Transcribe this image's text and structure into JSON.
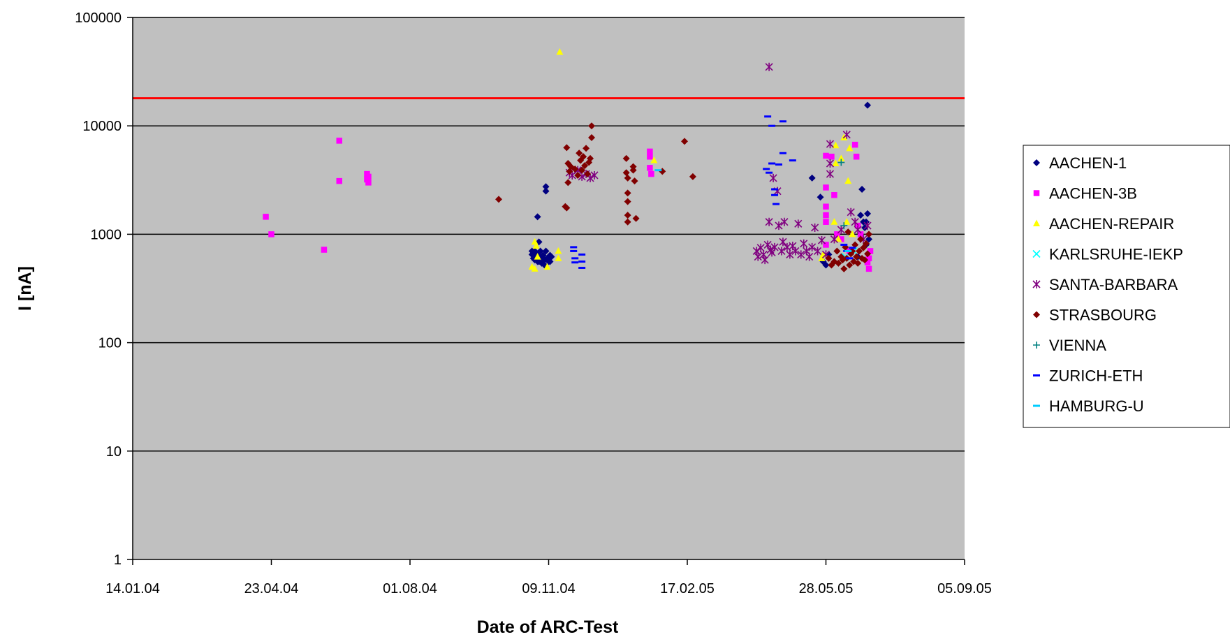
{
  "chart_data": {
    "type": "scatter",
    "title": "",
    "xlabel": "Date of ARC-Test",
    "ylabel": "I [nA]",
    "x_scale": "date",
    "y_scale": "log",
    "xlim": [
      "2004-01-14",
      "2005-09-05"
    ],
    "ylim": [
      1,
      100000
    ],
    "x_tick_labels": [
      "14.01.04",
      "23.04.04",
      "01.08.04",
      "09.11.04",
      "17.02.05",
      "28.05.05",
      "05.09.05"
    ],
    "y_tick_labels": [
      "1",
      "10",
      "100",
      "1000",
      "10000",
      "100000"
    ],
    "y_ticks": [
      1,
      10,
      100,
      1000,
      10000,
      100000
    ],
    "grid": "horizontal",
    "plot_background": "#c0c0c0",
    "threshold_line": {
      "y": 18000,
      "color": "#ff0000"
    },
    "legend_position": "right",
    "series": [
      {
        "name": "AACHEN-1",
        "marker": "diamond",
        "color": "#000080",
        "points": [
          [
            "2004-11-01",
            1450
          ],
          [
            "2004-11-07",
            2500
          ],
          [
            "2004-11-07",
            2750
          ],
          [
            "2004-10-28",
            700
          ],
          [
            "2004-10-28",
            650
          ],
          [
            "2004-10-29",
            600
          ],
          [
            "2004-10-30",
            580
          ],
          [
            "2004-10-30",
            700
          ],
          [
            "2004-10-31",
            620
          ],
          [
            "2004-11-01",
            650
          ],
          [
            "2004-11-01",
            560
          ],
          [
            "2004-11-02",
            850
          ],
          [
            "2004-11-02",
            560
          ],
          [
            "2004-11-03",
            700
          ],
          [
            "2004-11-04",
            620
          ],
          [
            "2004-11-04",
            540
          ],
          [
            "2004-11-05",
            600
          ],
          [
            "2004-11-05",
            640
          ],
          [
            "2004-11-06",
            580
          ],
          [
            "2004-11-06",
            520
          ],
          [
            "2004-11-07",
            700
          ],
          [
            "2004-11-08",
            600
          ],
          [
            "2004-11-09",
            560
          ],
          [
            "2004-11-10",
            640
          ],
          [
            "2004-11-10",
            560
          ],
          [
            "2004-11-11",
            620
          ],
          [
            "2005-05-18",
            3300
          ],
          [
            "2005-05-24",
            2200
          ],
          [
            "2005-05-26",
            560
          ],
          [
            "2005-05-28",
            520
          ],
          [
            "2005-05-30",
            650
          ],
          [
            "2005-06-10",
            600
          ],
          [
            "2005-06-15",
            680
          ],
          [
            "2005-06-20",
            620
          ],
          [
            "2005-06-22",
            1500
          ],
          [
            "2005-06-23",
            2600
          ],
          [
            "2005-06-24",
            1300
          ],
          [
            "2005-06-25",
            1150
          ],
          [
            "2005-06-26",
            1300
          ],
          [
            "2005-06-26",
            800
          ],
          [
            "2005-06-27",
            1550
          ],
          [
            "2005-06-27",
            15500
          ],
          [
            "2005-06-28",
            900
          ]
        ]
      },
      {
        "name": "AACHEN-3B",
        "marker": "square",
        "color": "#ff00ff",
        "points": [
          [
            "2004-04-19",
            1450
          ],
          [
            "2004-04-23",
            1000
          ],
          [
            "2004-05-31",
            720
          ],
          [
            "2004-06-11",
            7300
          ],
          [
            "2004-06-11",
            3100
          ],
          [
            "2004-07-01",
            3600
          ],
          [
            "2004-07-01",
            3200
          ],
          [
            "2004-07-02",
            3000
          ],
          [
            "2004-07-02",
            3400
          ],
          [
            "2005-01-21",
            5800
          ],
          [
            "2005-01-21",
            5200
          ],
          [
            "2005-01-22",
            3600
          ],
          [
            "2005-01-21",
            4100
          ],
          [
            "2005-05-28",
            5300
          ],
          [
            "2005-05-28",
            2700
          ],
          [
            "2005-05-28",
            1800
          ],
          [
            "2005-05-28",
            1500
          ],
          [
            "2005-05-28",
            1300
          ],
          [
            "2005-05-28",
            800
          ],
          [
            "2005-06-01",
            5200
          ],
          [
            "2005-06-03",
            2300
          ],
          [
            "2005-06-05",
            1000
          ],
          [
            "2005-06-08",
            900
          ],
          [
            "2005-06-14",
            700
          ],
          [
            "2005-06-18",
            6700
          ],
          [
            "2005-06-19",
            5200
          ],
          [
            "2005-06-20",
            1200
          ],
          [
            "2005-06-22",
            1000
          ],
          [
            "2005-06-27",
            550
          ],
          [
            "2005-06-28",
            480
          ],
          [
            "2005-06-28",
            600
          ],
          [
            "2005-06-29",
            700
          ]
        ]
      },
      {
        "name": "AACHEN-REPAIR",
        "marker": "triangle",
        "color": "#ffff00",
        "points": [
          [
            "2004-11-17",
            48000
          ],
          [
            "2004-10-28",
            500
          ],
          [
            "2004-10-30",
            480
          ],
          [
            "2004-10-30",
            850
          ],
          [
            "2004-10-31",
            780
          ],
          [
            "2004-11-01",
            620
          ],
          [
            "2004-11-08",
            500
          ],
          [
            "2004-11-16",
            700
          ],
          [
            "2004-11-16",
            600
          ],
          [
            "2005-01-24",
            4800
          ],
          [
            "2005-05-25",
            600
          ],
          [
            "2005-05-26",
            650
          ],
          [
            "2005-06-04",
            6600
          ],
          [
            "2005-06-04",
            4500
          ],
          [
            "2005-06-03",
            1300
          ],
          [
            "2005-06-08",
            5000
          ],
          [
            "2005-06-10",
            7800
          ],
          [
            "2005-06-13",
            3100
          ],
          [
            "2005-06-14",
            6200
          ],
          [
            "2005-06-12",
            1300
          ],
          [
            "2005-06-06",
            900
          ],
          [
            "2005-06-16",
            1000
          ]
        ]
      },
      {
        "name": "KARLSRUHE-IEKP",
        "marker": "x",
        "color": "#00ffff",
        "points": [
          [
            "2005-06-11",
            620
          ],
          [
            "2005-06-17",
            700
          ]
        ]
      },
      {
        "name": "SANTA-BARBARA",
        "marker": "star",
        "color": "#800080",
        "points": [
          [
            "2005-04-17",
            35000
          ],
          [
            "2004-11-24",
            3700
          ],
          [
            "2004-11-26",
            3500
          ],
          [
            "2004-11-30",
            3900
          ],
          [
            "2004-12-03",
            3400
          ],
          [
            "2004-12-06",
            3600
          ],
          [
            "2004-12-09",
            3300
          ],
          [
            "2004-12-12",
            3500
          ],
          [
            "2005-04-08",
            700
          ],
          [
            "2005-04-09",
            620
          ],
          [
            "2005-04-11",
            750
          ],
          [
            "2005-04-13",
            650
          ],
          [
            "2005-04-14",
            580
          ],
          [
            "2005-04-16",
            800
          ],
          [
            "2005-04-17",
            1300
          ],
          [
            "2005-04-18",
            720
          ],
          [
            "2005-04-19",
            680
          ],
          [
            "2005-04-20",
            3300
          ],
          [
            "2005-04-21",
            760
          ],
          [
            "2005-04-23",
            2500
          ],
          [
            "2005-04-24",
            1200
          ],
          [
            "2005-04-26",
            700
          ],
          [
            "2005-04-27",
            850
          ],
          [
            "2005-04-28",
            1300
          ],
          [
            "2005-04-30",
            760
          ],
          [
            "2005-05-02",
            650
          ],
          [
            "2005-05-04",
            780
          ],
          [
            "2005-05-06",
            700
          ],
          [
            "2005-05-08",
            1250
          ],
          [
            "2005-05-10",
            650
          ],
          [
            "2005-05-12",
            820
          ],
          [
            "2005-05-14",
            700
          ],
          [
            "2005-05-16",
            620
          ],
          [
            "2005-05-18",
            760
          ],
          [
            "2005-05-20",
            1150
          ],
          [
            "2005-05-22",
            700
          ],
          [
            "2005-05-25",
            880
          ],
          [
            "2005-05-28",
            650
          ],
          [
            "2005-05-31",
            6800
          ],
          [
            "2005-05-31",
            4500
          ],
          [
            "2005-05-31",
            3600
          ],
          [
            "2005-06-03",
            900
          ],
          [
            "2005-06-08",
            1100
          ],
          [
            "2005-06-12",
            8300
          ],
          [
            "2005-06-15",
            1600
          ],
          [
            "2005-06-18",
            1300
          ],
          [
            "2005-06-20",
            1100
          ],
          [
            "2005-06-24",
            900
          ],
          [
            "2005-06-27",
            1200
          ]
        ]
      },
      {
        "name": "STRASBOURG",
        "marker": "diamond",
        "color": "#800000",
        "points": [
          [
            "2004-10-04",
            2100
          ],
          [
            "2004-11-21",
            1800
          ],
          [
            "2004-11-22",
            1750
          ],
          [
            "2004-11-22",
            6300
          ],
          [
            "2004-11-23",
            3000
          ],
          [
            "2004-11-23",
            4500
          ],
          [
            "2004-11-24",
            3800
          ],
          [
            "2004-11-25",
            4200
          ],
          [
            "2004-11-28",
            4000
          ],
          [
            "2004-11-30",
            3500
          ],
          [
            "2004-12-01",
            5600
          ],
          [
            "2004-12-02",
            4800
          ],
          [
            "2004-12-03",
            3900
          ],
          [
            "2004-12-04",
            5200
          ],
          [
            "2004-12-05",
            4300
          ],
          [
            "2004-12-06",
            6200
          ],
          [
            "2004-12-07",
            3600
          ],
          [
            "2004-12-08",
            4600
          ],
          [
            "2004-12-09",
            5000
          ],
          [
            "2004-12-10",
            7800
          ],
          [
            "2004-12-10",
            10000
          ],
          [
            "2005-01-04",
            5000
          ],
          [
            "2005-01-04",
            3700
          ],
          [
            "2005-01-05",
            3300
          ],
          [
            "2005-01-05",
            2400
          ],
          [
            "2005-01-05",
            2000
          ],
          [
            "2005-01-05",
            1500
          ],
          [
            "2005-01-05",
            1300
          ],
          [
            "2005-01-09",
            4200
          ],
          [
            "2005-01-09",
            3900
          ],
          [
            "2005-01-10",
            3100
          ],
          [
            "2005-01-11",
            1400
          ],
          [
            "2005-01-30",
            3800
          ],
          [
            "2005-02-15",
            7200
          ],
          [
            "2005-02-21",
            3400
          ],
          [
            "2005-05-30",
            600
          ],
          [
            "2005-06-01",
            520
          ],
          [
            "2005-06-03",
            560
          ],
          [
            "2005-06-05",
            700
          ],
          [
            "2005-06-06",
            540
          ],
          [
            "2005-06-08",
            620
          ],
          [
            "2005-06-09",
            580
          ],
          [
            "2005-06-10",
            480
          ],
          [
            "2005-06-11",
            760
          ],
          [
            "2005-06-12",
            600
          ],
          [
            "2005-06-13",
            1050
          ],
          [
            "2005-06-14",
            520
          ],
          [
            "2005-06-15",
            660
          ],
          [
            "2005-06-16",
            700
          ],
          [
            "2005-06-17",
            560
          ],
          [
            "2005-06-18",
            800
          ],
          [
            "2005-06-19",
            620
          ],
          [
            "2005-06-20",
            540
          ],
          [
            "2005-06-21",
            700
          ],
          [
            "2005-06-22",
            900
          ],
          [
            "2005-06-23",
            600
          ],
          [
            "2005-06-24",
            750
          ],
          [
            "2005-06-25",
            580
          ],
          [
            "2005-06-26",
            820
          ],
          [
            "2005-06-27",
            660
          ],
          [
            "2005-06-28",
            1000
          ]
        ]
      },
      {
        "name": "VIENNA",
        "marker": "plus",
        "color": "#008080",
        "points": [
          [
            "2005-06-08",
            4600
          ],
          [
            "2005-06-10",
            1200
          ]
        ]
      },
      {
        "name": "ZURICH-ETH",
        "marker": "dash",
        "color": "#0000ff",
        "points": [
          [
            "2004-11-27",
            760
          ],
          [
            "2004-11-27",
            700
          ],
          [
            "2004-11-28",
            600
          ],
          [
            "2004-11-28",
            550
          ],
          [
            "2004-12-03",
            650
          ],
          [
            "2004-12-03",
            560
          ],
          [
            "2004-12-03",
            490
          ],
          [
            "2005-04-16",
            12200
          ],
          [
            "2005-04-19",
            10000
          ],
          [
            "2005-04-27",
            11000
          ],
          [
            "2005-04-15",
            4000
          ],
          [
            "2005-04-17",
            3700
          ],
          [
            "2005-04-19",
            4500
          ],
          [
            "2005-04-21",
            2600
          ],
          [
            "2005-04-21",
            2300
          ],
          [
            "2005-04-22",
            1900
          ],
          [
            "2005-04-24",
            4400
          ],
          [
            "2005-04-27",
            5600
          ],
          [
            "2005-05-04",
            4800
          ],
          [
            "2005-06-10",
            800
          ],
          [
            "2005-06-12",
            700
          ],
          [
            "2005-06-14",
            600
          ],
          [
            "2005-06-16",
            750
          ]
        ]
      },
      {
        "name": "HAMBURG-U",
        "marker": "dash",
        "color": "#00ccff",
        "points": [
          [
            "2005-01-27",
            3900
          ],
          [
            "2005-06-13",
            700
          ]
        ]
      }
    ]
  }
}
